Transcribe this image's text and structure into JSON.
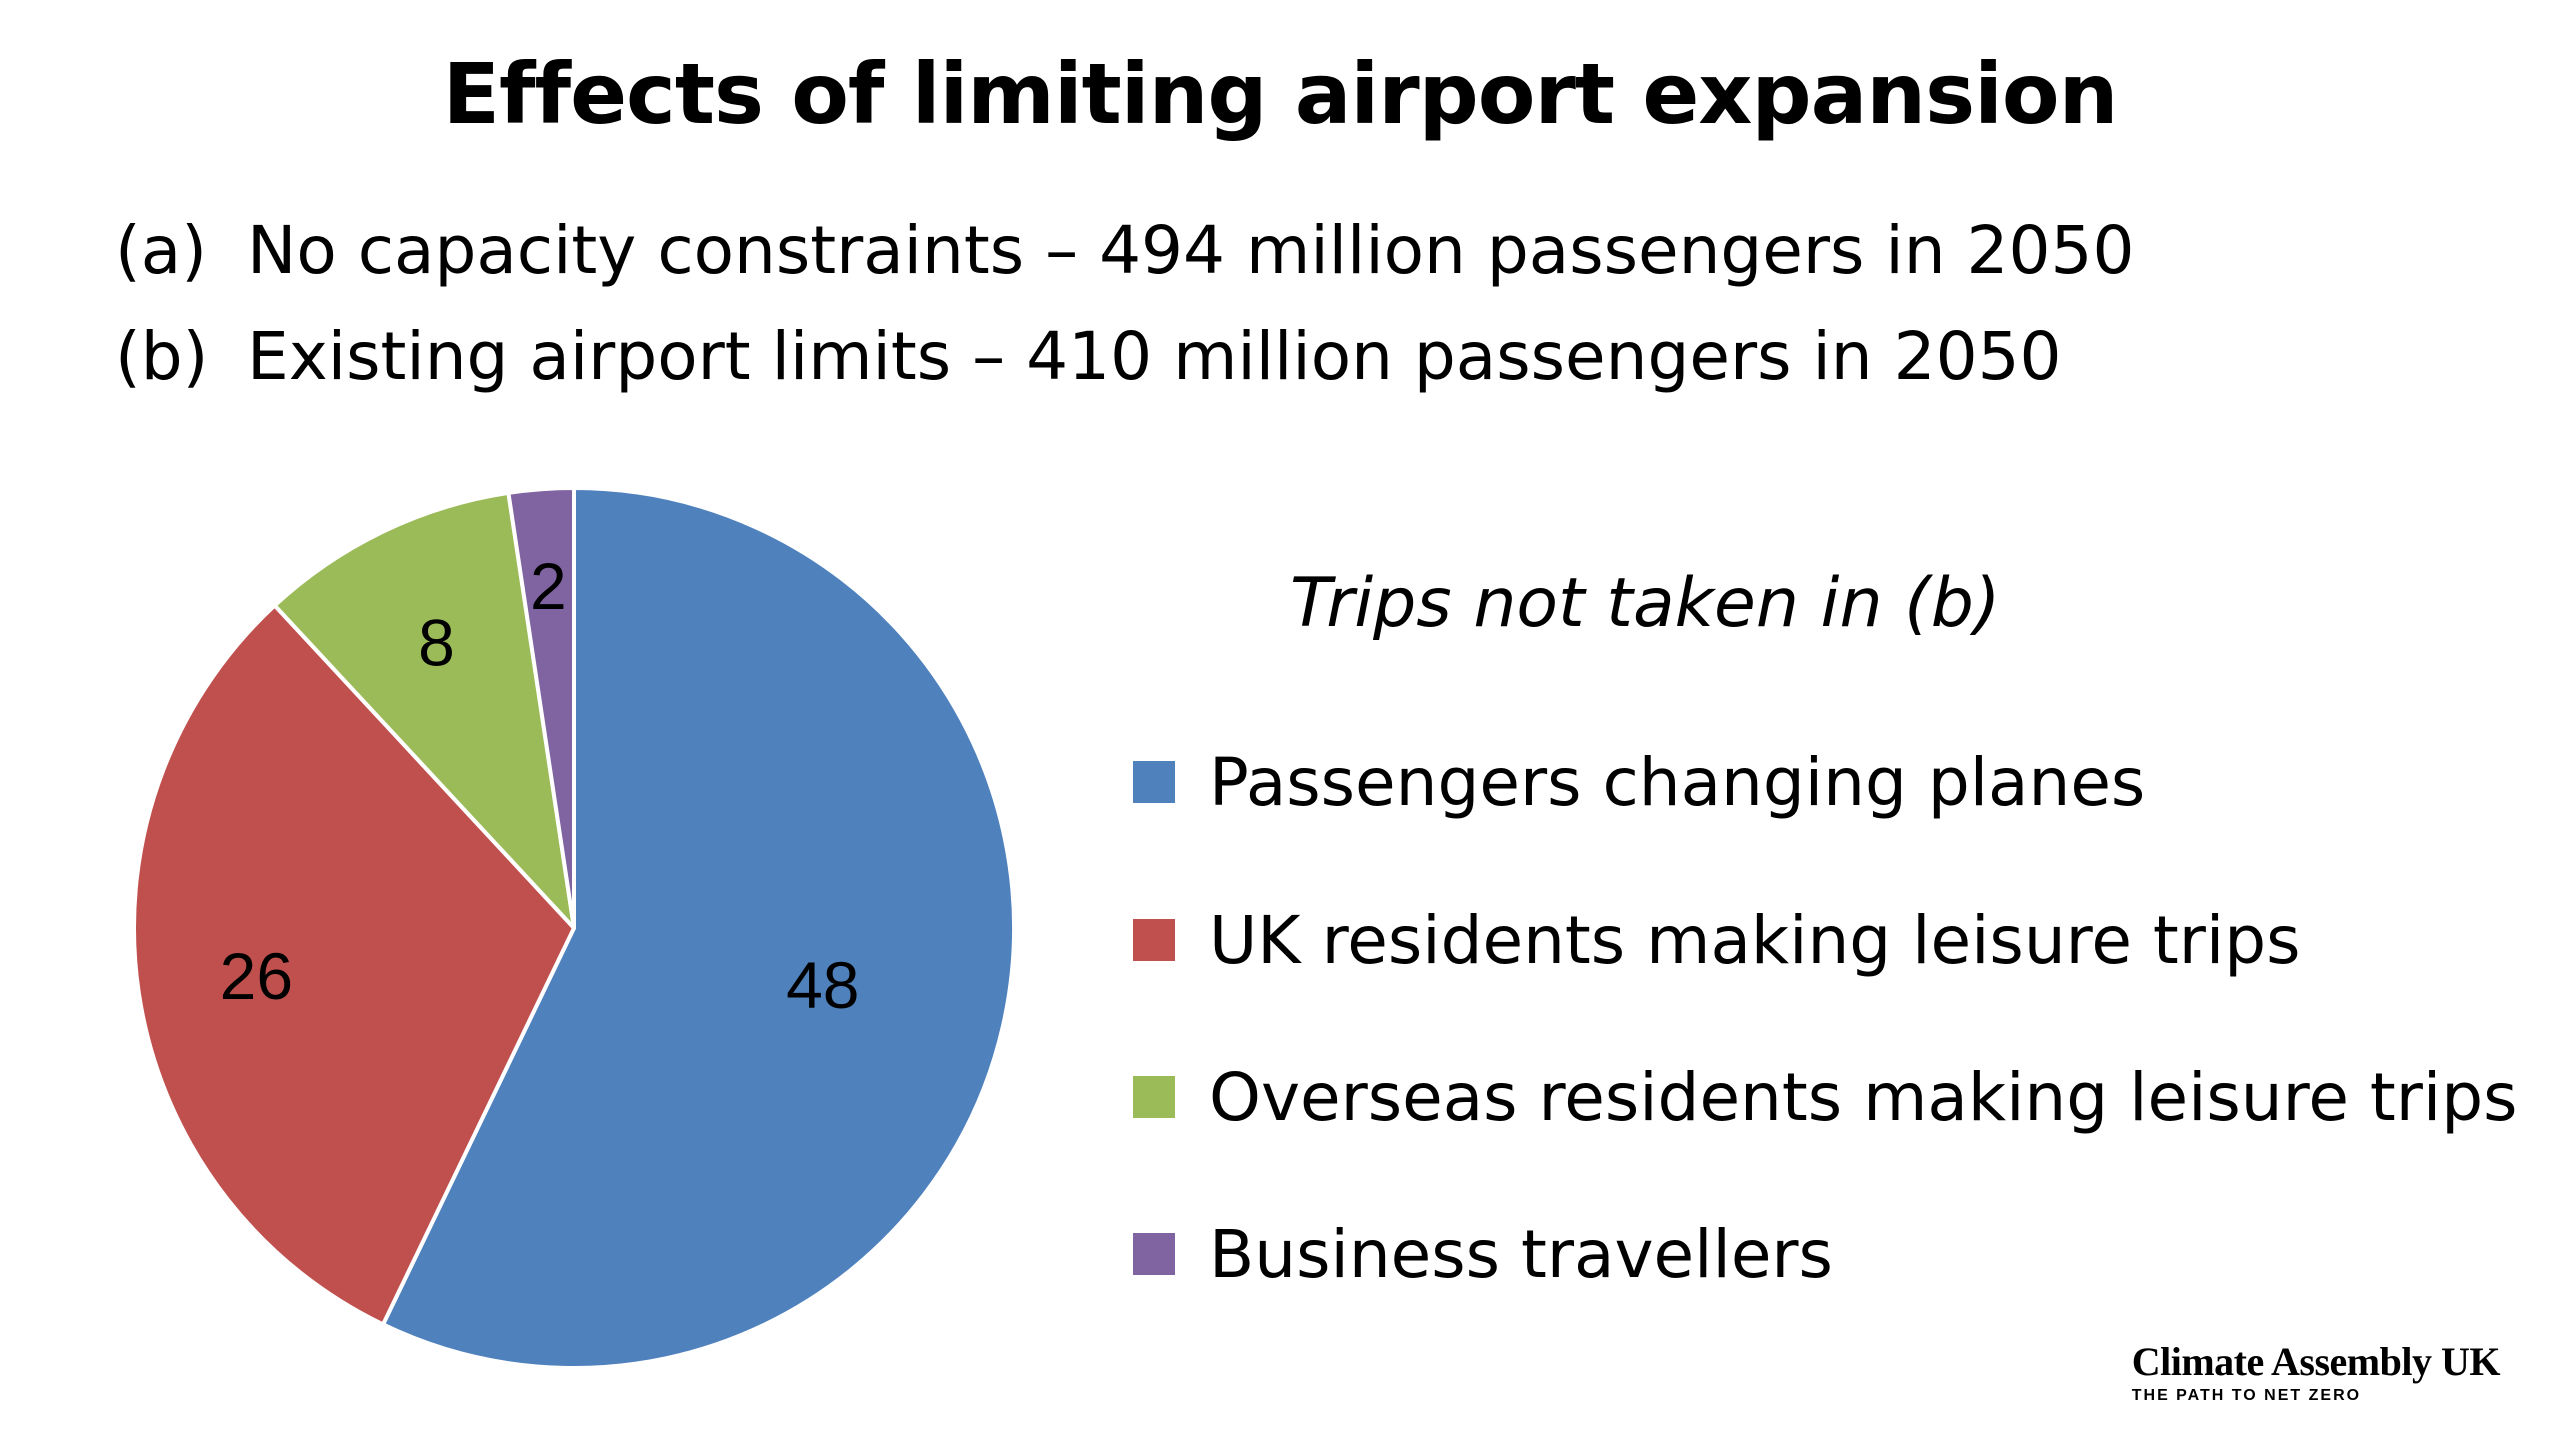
{
  "title": "Effects of limiting airport expansion",
  "scenarios": {
    "a": {
      "tag": "(a)",
      "text": "No capacity constraints – 494 million passengers in 2050"
    },
    "b": {
      "tag": "(b)",
      "text": "Existing airport limits – 410 million passengers in 2050"
    }
  },
  "brand": {
    "name": "Climate Assembly UK",
    "tagline": "THE PATH TO NET ZERO"
  },
  "chart_data": {
    "type": "pie",
    "title": "Trips not taken in (b)",
    "start_angle": "12 o'clock, clockwise",
    "legend_position": "right",
    "categories": [
      "Passengers changing planes",
      "UK residents making leisure trips",
      "Overseas residents making leisure trips",
      "Business travellers"
    ],
    "values": [
      48,
      26,
      8,
      2
    ],
    "colors": [
      "#4f81bd",
      "#c0504d",
      "#9bbb59",
      "#8064a2"
    ]
  }
}
